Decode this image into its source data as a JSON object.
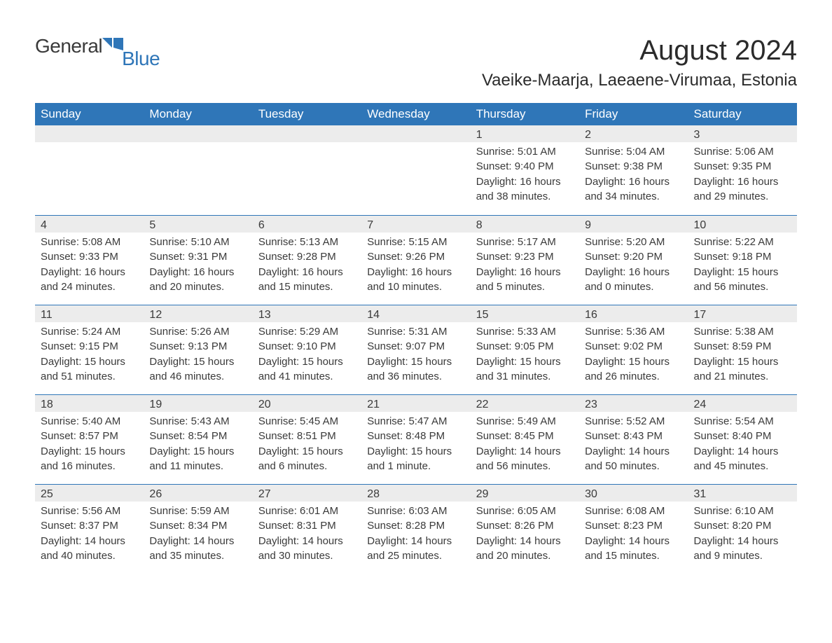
{
  "brand": {
    "part1": "General",
    "part2": "Blue",
    "flag_color": "#2f76b8"
  },
  "title": "August 2024",
  "subtitle": "Vaeike-Maarja, Laeaene-Virumaa, Estonia",
  "colors": {
    "header_bg": "#2f76b8",
    "header_text": "#ffffff",
    "daynum_bg": "#ececec",
    "row_border": "#2f76b8",
    "body_text": "#3a3a3a",
    "page_bg": "#ffffff"
  },
  "typography": {
    "title_fontsize": 40,
    "subtitle_fontsize": 24,
    "weekday_fontsize": 17,
    "daynum_fontsize": 16,
    "body_fontsize": 15,
    "font_family": "Arial, Helvetica, sans-serif"
  },
  "weekdays": [
    "Sunday",
    "Monday",
    "Tuesday",
    "Wednesday",
    "Thursday",
    "Friday",
    "Saturday"
  ],
  "weeks": [
    [
      null,
      null,
      null,
      null,
      {
        "n": "1",
        "sr": "Sunrise: 5:01 AM",
        "ss": "Sunset: 9:40 PM",
        "d1": "Daylight: 16 hours",
        "d2": "and 38 minutes."
      },
      {
        "n": "2",
        "sr": "Sunrise: 5:04 AM",
        "ss": "Sunset: 9:38 PM",
        "d1": "Daylight: 16 hours",
        "d2": "and 34 minutes."
      },
      {
        "n": "3",
        "sr": "Sunrise: 5:06 AM",
        "ss": "Sunset: 9:35 PM",
        "d1": "Daylight: 16 hours",
        "d2": "and 29 minutes."
      }
    ],
    [
      {
        "n": "4",
        "sr": "Sunrise: 5:08 AM",
        "ss": "Sunset: 9:33 PM",
        "d1": "Daylight: 16 hours",
        "d2": "and 24 minutes."
      },
      {
        "n": "5",
        "sr": "Sunrise: 5:10 AM",
        "ss": "Sunset: 9:31 PM",
        "d1": "Daylight: 16 hours",
        "d2": "and 20 minutes."
      },
      {
        "n": "6",
        "sr": "Sunrise: 5:13 AM",
        "ss": "Sunset: 9:28 PM",
        "d1": "Daylight: 16 hours",
        "d2": "and 15 minutes."
      },
      {
        "n": "7",
        "sr": "Sunrise: 5:15 AM",
        "ss": "Sunset: 9:26 PM",
        "d1": "Daylight: 16 hours",
        "d2": "and 10 minutes."
      },
      {
        "n": "8",
        "sr": "Sunrise: 5:17 AM",
        "ss": "Sunset: 9:23 PM",
        "d1": "Daylight: 16 hours",
        "d2": "and 5 minutes."
      },
      {
        "n": "9",
        "sr": "Sunrise: 5:20 AM",
        "ss": "Sunset: 9:20 PM",
        "d1": "Daylight: 16 hours",
        "d2": "and 0 minutes."
      },
      {
        "n": "10",
        "sr": "Sunrise: 5:22 AM",
        "ss": "Sunset: 9:18 PM",
        "d1": "Daylight: 15 hours",
        "d2": "and 56 minutes."
      }
    ],
    [
      {
        "n": "11",
        "sr": "Sunrise: 5:24 AM",
        "ss": "Sunset: 9:15 PM",
        "d1": "Daylight: 15 hours",
        "d2": "and 51 minutes."
      },
      {
        "n": "12",
        "sr": "Sunrise: 5:26 AM",
        "ss": "Sunset: 9:13 PM",
        "d1": "Daylight: 15 hours",
        "d2": "and 46 minutes."
      },
      {
        "n": "13",
        "sr": "Sunrise: 5:29 AM",
        "ss": "Sunset: 9:10 PM",
        "d1": "Daylight: 15 hours",
        "d2": "and 41 minutes."
      },
      {
        "n": "14",
        "sr": "Sunrise: 5:31 AM",
        "ss": "Sunset: 9:07 PM",
        "d1": "Daylight: 15 hours",
        "d2": "and 36 minutes."
      },
      {
        "n": "15",
        "sr": "Sunrise: 5:33 AM",
        "ss": "Sunset: 9:05 PM",
        "d1": "Daylight: 15 hours",
        "d2": "and 31 minutes."
      },
      {
        "n": "16",
        "sr": "Sunrise: 5:36 AM",
        "ss": "Sunset: 9:02 PM",
        "d1": "Daylight: 15 hours",
        "d2": "and 26 minutes."
      },
      {
        "n": "17",
        "sr": "Sunrise: 5:38 AM",
        "ss": "Sunset: 8:59 PM",
        "d1": "Daylight: 15 hours",
        "d2": "and 21 minutes."
      }
    ],
    [
      {
        "n": "18",
        "sr": "Sunrise: 5:40 AM",
        "ss": "Sunset: 8:57 PM",
        "d1": "Daylight: 15 hours",
        "d2": "and 16 minutes."
      },
      {
        "n": "19",
        "sr": "Sunrise: 5:43 AM",
        "ss": "Sunset: 8:54 PM",
        "d1": "Daylight: 15 hours",
        "d2": "and 11 minutes."
      },
      {
        "n": "20",
        "sr": "Sunrise: 5:45 AM",
        "ss": "Sunset: 8:51 PM",
        "d1": "Daylight: 15 hours",
        "d2": "and 6 minutes."
      },
      {
        "n": "21",
        "sr": "Sunrise: 5:47 AM",
        "ss": "Sunset: 8:48 PM",
        "d1": "Daylight: 15 hours",
        "d2": "and 1 minute."
      },
      {
        "n": "22",
        "sr": "Sunrise: 5:49 AM",
        "ss": "Sunset: 8:45 PM",
        "d1": "Daylight: 14 hours",
        "d2": "and 56 minutes."
      },
      {
        "n": "23",
        "sr": "Sunrise: 5:52 AM",
        "ss": "Sunset: 8:43 PM",
        "d1": "Daylight: 14 hours",
        "d2": "and 50 minutes."
      },
      {
        "n": "24",
        "sr": "Sunrise: 5:54 AM",
        "ss": "Sunset: 8:40 PM",
        "d1": "Daylight: 14 hours",
        "d2": "and 45 minutes."
      }
    ],
    [
      {
        "n": "25",
        "sr": "Sunrise: 5:56 AM",
        "ss": "Sunset: 8:37 PM",
        "d1": "Daylight: 14 hours",
        "d2": "and 40 minutes."
      },
      {
        "n": "26",
        "sr": "Sunrise: 5:59 AM",
        "ss": "Sunset: 8:34 PM",
        "d1": "Daylight: 14 hours",
        "d2": "and 35 minutes."
      },
      {
        "n": "27",
        "sr": "Sunrise: 6:01 AM",
        "ss": "Sunset: 8:31 PM",
        "d1": "Daylight: 14 hours",
        "d2": "and 30 minutes."
      },
      {
        "n": "28",
        "sr": "Sunrise: 6:03 AM",
        "ss": "Sunset: 8:28 PM",
        "d1": "Daylight: 14 hours",
        "d2": "and 25 minutes."
      },
      {
        "n": "29",
        "sr": "Sunrise: 6:05 AM",
        "ss": "Sunset: 8:26 PM",
        "d1": "Daylight: 14 hours",
        "d2": "and 20 minutes."
      },
      {
        "n": "30",
        "sr": "Sunrise: 6:08 AM",
        "ss": "Sunset: 8:23 PM",
        "d1": "Daylight: 14 hours",
        "d2": "and 15 minutes."
      },
      {
        "n": "31",
        "sr": "Sunrise: 6:10 AM",
        "ss": "Sunset: 8:20 PM",
        "d1": "Daylight: 14 hours",
        "d2": "and 9 minutes."
      }
    ]
  ]
}
